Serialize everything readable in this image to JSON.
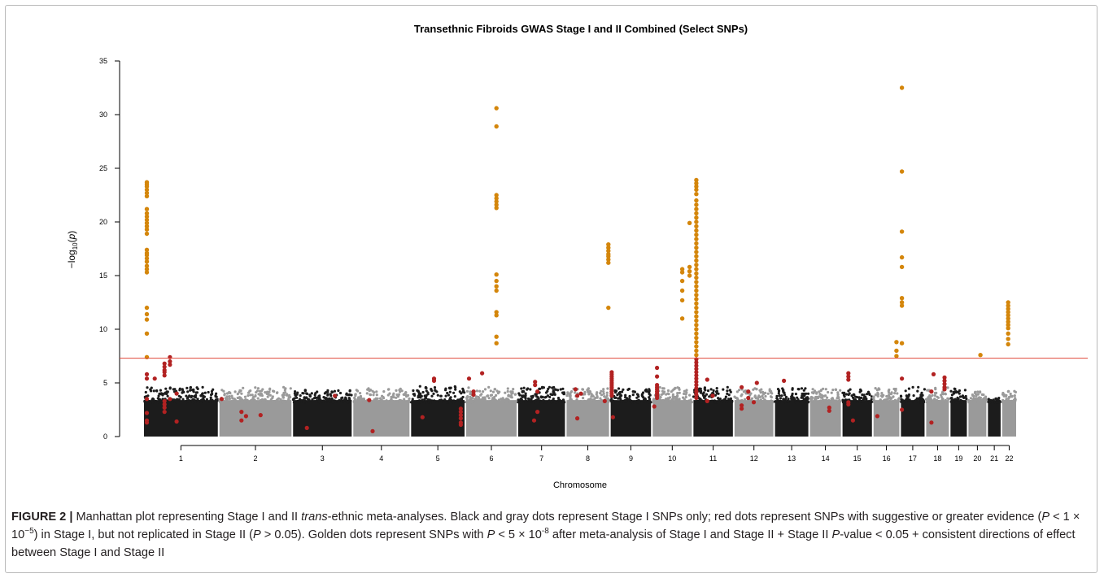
{
  "chart_data": {
    "type": "scatter",
    "title": "Transethnic Fibroids GWAS Stage I and II Combined (Select SNPs)",
    "xlabel": "Chromosome",
    "ylabel_main": "−log",
    "ylabel_sub": "10",
    "ylabel_paren": "(",
    "ylabel_p": "p",
    "ylabel_close": ")",
    "ylim": [
      0,
      35
    ],
    "yticks": [
      0,
      5,
      10,
      15,
      20,
      25,
      30,
      35
    ],
    "threshold": 7.3,
    "colors": {
      "black": "#1c1c1c",
      "gray": "#9a9a9a",
      "red": "#b22222",
      "gold": "#d4860b",
      "threshold": "#e0473a"
    },
    "chromosomes": [
      {
        "label": "1",
        "start": 0,
        "end": 248,
        "color": "black",
        "background_max": 4.6
      },
      {
        "label": "2",
        "start": 248,
        "end": 490,
        "color": "gray",
        "background_max": 4.6
      },
      {
        "label": "3",
        "start": 490,
        "end": 688,
        "color": "black",
        "background_max": 4.4
      },
      {
        "label": "4",
        "start": 688,
        "end": 878,
        "color": "gray",
        "background_max": 4.5
      },
      {
        "label": "5",
        "start": 878,
        "end": 1059,
        "color": "black",
        "background_max": 4.7
      },
      {
        "label": "6",
        "start": 1059,
        "end": 1230,
        "color": "gray",
        "background_max": 4.6
      },
      {
        "label": "7",
        "start": 1230,
        "end": 1389,
        "color": "black",
        "background_max": 4.6
      },
      {
        "label": "8",
        "start": 1389,
        "end": 1534,
        "color": "gray",
        "background_max": 4.5
      },
      {
        "label": "9",
        "start": 1534,
        "end": 1672,
        "color": "black",
        "background_max": 4.5
      },
      {
        "label": "10",
        "start": 1672,
        "end": 1806,
        "color": "gray",
        "background_max": 4.6
      },
      {
        "label": "11",
        "start": 1806,
        "end": 1941,
        "color": "black",
        "background_max": 4.6
      },
      {
        "label": "12",
        "start": 1941,
        "end": 2074,
        "color": "gray",
        "background_max": 4.5
      },
      {
        "label": "13",
        "start": 2074,
        "end": 2189,
        "color": "black",
        "background_max": 4.5
      },
      {
        "label": "14",
        "start": 2189,
        "end": 2296,
        "color": "gray",
        "background_max": 4.5
      },
      {
        "label": "15",
        "start": 2296,
        "end": 2398,
        "color": "black",
        "background_max": 4.4
      },
      {
        "label": "16",
        "start": 2398,
        "end": 2488,
        "color": "gray",
        "background_max": 4.6
      },
      {
        "label": "17",
        "start": 2488,
        "end": 2571,
        "color": "black",
        "background_max": 4.6
      },
      {
        "label": "18",
        "start": 2571,
        "end": 2651,
        "color": "gray",
        "background_max": 4.6
      },
      {
        "label": "19",
        "start": 2651,
        "end": 2710,
        "color": "black",
        "background_max": 4.5
      },
      {
        "label": "20",
        "start": 2710,
        "end": 2774,
        "color": "gray",
        "background_max": 4.3
      },
      {
        "label": "21",
        "start": 2774,
        "end": 2821,
        "color": "black",
        "background_max": 3.6
      },
      {
        "label": "22",
        "start": 2821,
        "end": 2872,
        "color": "gray",
        "background_max": 4.4
      }
    ],
    "gold_points": [
      {
        "chrom": "1",
        "x": 12,
        "y": [
          23.7,
          23.5,
          23.3,
          23.0,
          22.7,
          22.4,
          21.2,
          20.8,
          20.5,
          20.2,
          19.9,
          19.6,
          19.3,
          18.9,
          17.4,
          17.1,
          16.9,
          16.6,
          16.3,
          15.9,
          15.6,
          15.3,
          12.0,
          11.4,
          10.9,
          9.6,
          7.4
        ]
      },
      {
        "chrom": "6",
        "x": 102,
        "y": [
          30.6,
          28.9,
          22.5,
          22.2,
          21.9,
          21.6,
          21.3,
          15.1,
          14.5,
          14.0,
          13.6,
          11.6,
          11.3,
          9.3,
          8.7
        ]
      },
      {
        "chrom": "8",
        "x": 140,
        "y": [
          17.9,
          17.6,
          17.3,
          17.0,
          16.8,
          16.5,
          16.2,
          12.0
        ]
      },
      {
        "chrom": "10",
        "x": 100,
        "y": [
          15.6,
          15.3,
          14.5,
          13.6,
          12.7,
          11.0
        ]
      },
      {
        "chrom": "10",
        "x": 124,
        "y": [
          19.9,
          15.8,
          15.4,
          15.0
        ]
      },
      {
        "chrom": "11",
        "x": 12,
        "y": [
          23.9,
          23.6,
          23.3,
          23.0,
          22.6,
          22.0,
          21.6,
          21.2,
          20.8,
          20.4,
          20.0,
          19.6,
          19.2,
          18.8,
          18.4,
          18.0,
          17.6,
          17.2,
          16.8,
          16.4,
          16.0,
          15.6,
          15.2,
          14.8,
          14.4,
          14.0,
          13.6,
          13.2,
          12.8,
          12.4,
          12.0,
          11.6,
          11.2,
          10.8,
          10.4,
          10.0,
          9.6,
          9.2,
          8.8,
          8.4,
          8.0,
          7.6
        ]
      },
      {
        "chrom": "16",
        "x": 78,
        "y": [
          8.8,
          8.0,
          7.5
        ]
      },
      {
        "chrom": "17",
        "x": 6,
        "y": [
          32.5,
          24.7,
          19.1,
          16.7,
          15.8,
          12.9,
          12.5,
          12.2,
          8.7
        ]
      },
      {
        "chrom": "20",
        "x": 42,
        "y": [
          7.6
        ]
      },
      {
        "chrom": "22",
        "x": 22,
        "y": [
          12.5,
          12.2,
          11.9,
          11.6,
          11.3,
          11.0,
          10.7,
          10.4,
          10.1,
          9.6,
          9.1,
          8.6
        ]
      }
    ],
    "red_points": [
      {
        "chrom": "1",
        "x": 12,
        "y": [
          5.8,
          5.4,
          3.5,
          2.2,
          1.5,
          1.3
        ]
      },
      {
        "chrom": "1",
        "x": 38,
        "y": [
          5.4
        ]
      },
      {
        "chrom": "1",
        "x": 70,
        "y": [
          6.8,
          6.5,
          6.2,
          6.0,
          5.7,
          3.3,
          3.0,
          2.7,
          2.3
        ]
      },
      {
        "chrom": "1",
        "x": 88,
        "y": [
          7.4,
          7.0,
          6.7,
          3.5
        ]
      },
      {
        "chrom": "1",
        "x": 110,
        "y": [
          4.0,
          1.4
        ]
      },
      {
        "chrom": "2",
        "x": 10,
        "y": [
          3.5
        ]
      },
      {
        "chrom": "2",
        "x": 75,
        "y": [
          2.3,
          1.5
        ]
      },
      {
        "chrom": "2",
        "x": 90,
        "y": [
          1.9
        ]
      },
      {
        "chrom": "2",
        "x": 138,
        "y": [
          2.0
        ]
      },
      {
        "chrom": "3",
        "x": 48,
        "y": [
          0.8
        ]
      },
      {
        "chrom": "3",
        "x": 140,
        "y": [
          3.8
        ]
      },
      {
        "chrom": "4",
        "x": 55,
        "y": [
          3.4
        ]
      },
      {
        "chrom": "4",
        "x": 66,
        "y": [
          0.5
        ]
      },
      {
        "chrom": "5",
        "x": 40,
        "y": [
          1.8
        ]
      },
      {
        "chrom": "5",
        "x": 78,
        "y": [
          5.2,
          5.4
        ]
      },
      {
        "chrom": "5",
        "x": 166,
        "y": [
          2.6,
          2.3,
          2.0,
          1.7,
          1.3,
          1.1
        ]
      },
      {
        "chrom": "6",
        "x": 12,
        "y": [
          5.4
        ]
      },
      {
        "chrom": "6",
        "x": 27,
        "y": [
          4.2,
          3.9
        ]
      },
      {
        "chrom": "6",
        "x": 55,
        "y": [
          5.9
        ]
      },
      {
        "chrom": "7",
        "x": 58,
        "y": [
          5.1,
          4.8
        ]
      },
      {
        "chrom": "7",
        "x": 66,
        "y": [
          4.2,
          2.3
        ]
      },
      {
        "chrom": "7",
        "x": 55,
        "y": [
          1.5
        ]
      },
      {
        "chrom": "8",
        "x": 32,
        "y": [
          4.4
        ]
      },
      {
        "chrom": "8",
        "x": 38,
        "y": [
          3.8,
          1.7
        ]
      },
      {
        "chrom": "8",
        "x": 50,
        "y": [
          4.0
        ]
      },
      {
        "chrom": "8",
        "x": 128,
        "y": [
          3.3
        ]
      },
      {
        "chrom": "9",
        "x": 6,
        "y": [
          6.0,
          5.8,
          5.6,
          5.4,
          5.2,
          5.0,
          4.8,
          4.6,
          4.4,
          4.2,
          4.0,
          3.8
        ]
      },
      {
        "chrom": "9",
        "x": 10,
        "y": [
          1.8
        ]
      },
      {
        "chrom": "10",
        "x": 17,
        "y": [
          6.4,
          5.6,
          4.8,
          4.6,
          4.4,
          4.2,
          4.0,
          3.8,
          3.6
        ]
      },
      {
        "chrom": "10",
        "x": 8,
        "y": [
          2.8
        ]
      },
      {
        "chrom": "11",
        "x": 12,
        "y": [
          7.2,
          6.9,
          6.6,
          6.3,
          6.0,
          5.7,
          5.4,
          5.1,
          4.8,
          4.5,
          4.2,
          3.9,
          3.6
        ]
      },
      {
        "chrom": "11",
        "x": 48,
        "y": [
          5.3
        ]
      },
      {
        "chrom": "11",
        "x": 66,
        "y": [
          3.8
        ]
      },
      {
        "chrom": "11",
        "x": 48,
        "y": [
          3.3
        ]
      },
      {
        "chrom": "12",
        "x": 26,
        "y": [
          4.6
        ]
      },
      {
        "chrom": "12",
        "x": 48,
        "y": [
          4.2,
          3.6
        ]
      },
      {
        "chrom": "12",
        "x": 26,
        "y": [
          2.9,
          2.6
        ]
      },
      {
        "chrom": "12",
        "x": 76,
        "y": [
          5.0
        ]
      },
      {
        "chrom": "12",
        "x": 66,
        "y": [
          3.2
        ]
      },
      {
        "chrom": "13",
        "x": 32,
        "y": [
          5.2
        ]
      },
      {
        "chrom": "14",
        "x": 66,
        "y": [
          2.7,
          2.4
        ]
      },
      {
        "chrom": "15",
        "x": 22,
        "y": [
          5.9,
          5.6,
          5.3,
          3.2,
          3.0
        ]
      },
      {
        "chrom": "15",
        "x": 37,
        "y": [
          1.5
        ]
      },
      {
        "chrom": "16",
        "x": 15,
        "y": [
          1.9
        ]
      },
      {
        "chrom": "17",
        "x": 6,
        "y": [
          5.4,
          2.5
        ]
      },
      {
        "chrom": "18",
        "x": 27,
        "y": [
          5.8
        ]
      },
      {
        "chrom": "18",
        "x": 20,
        "y": [
          4.2,
          1.3
        ]
      },
      {
        "chrom": "18",
        "x": 63,
        "y": [
          5.5,
          5.2,
          4.9,
          4.6,
          4.4
        ]
      }
    ]
  },
  "caption": {
    "figure_label": "FIGURE 2 |",
    "t1": " Manhattan plot representing Stage I and II ",
    "t2": "trans",
    "t3": "-ethnic meta-analyses. Black and gray dots represent Stage I SNPs only; red dots represent SNPs with suggestive or greater evidence (",
    "t4": "P",
    "t5": " < 1 × 10",
    "t6": "−5",
    "t7": ") in Stage I, but not replicated in Stage II (",
    "t8": "P",
    "t9": " > 0.05). Golden dots represent SNPs with ",
    "t10": "P",
    "t11": " < 5 × 10",
    "t12": "-8",
    "t13": " after meta-analysis of Stage I and Stage II + Stage II ",
    "t14": "P",
    "t15": "-value < 0.05 + consistent directions of effect between Stage I and Stage II"
  }
}
